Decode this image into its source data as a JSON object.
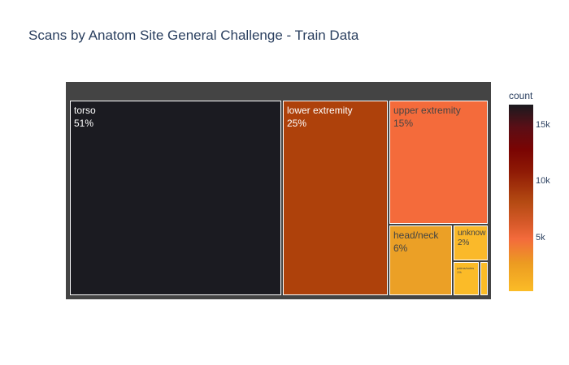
{
  "title": "Scans by Anatom Site General Challenge - Train Data",
  "chart_data": {
    "type": "treemap",
    "title": "Scans by Anatom Site General Challenge - Train Data",
    "items": [
      {
        "label": "torso",
        "percent_text": "51%",
        "share": 51,
        "color": "#1b1b21",
        "text_color": "#ffffff"
      },
      {
        "label": "lower extremity",
        "percent_text": "25%",
        "share": 25,
        "color": "#ae410b",
        "text_color": "#ffffff"
      },
      {
        "label": "upper extremity",
        "percent_text": "15%",
        "share": 15,
        "color": "#f46b3b",
        "text_color": "#444444"
      },
      {
        "label": "head/neck",
        "percent_text": "6%",
        "share": 6,
        "color": "#eba026",
        "text_color": "#444444"
      },
      {
        "label": "unknow",
        "percent_text": "2%",
        "share": 2,
        "color": "#fab92a",
        "text_color": "#444444"
      },
      {
        "label": "palms/soles",
        "percent_text": "1%",
        "share": 1,
        "color": "#fbbb28",
        "text_color": "#444444"
      },
      {
        "label": "",
        "percent_text": "",
        "share": 0.2,
        "color": "#fbbc27",
        "text_color": "#444444"
      }
    ],
    "colorbar": {
      "title": "count",
      "ticks": [
        "15k",
        "10k",
        "5k"
      ]
    }
  }
}
